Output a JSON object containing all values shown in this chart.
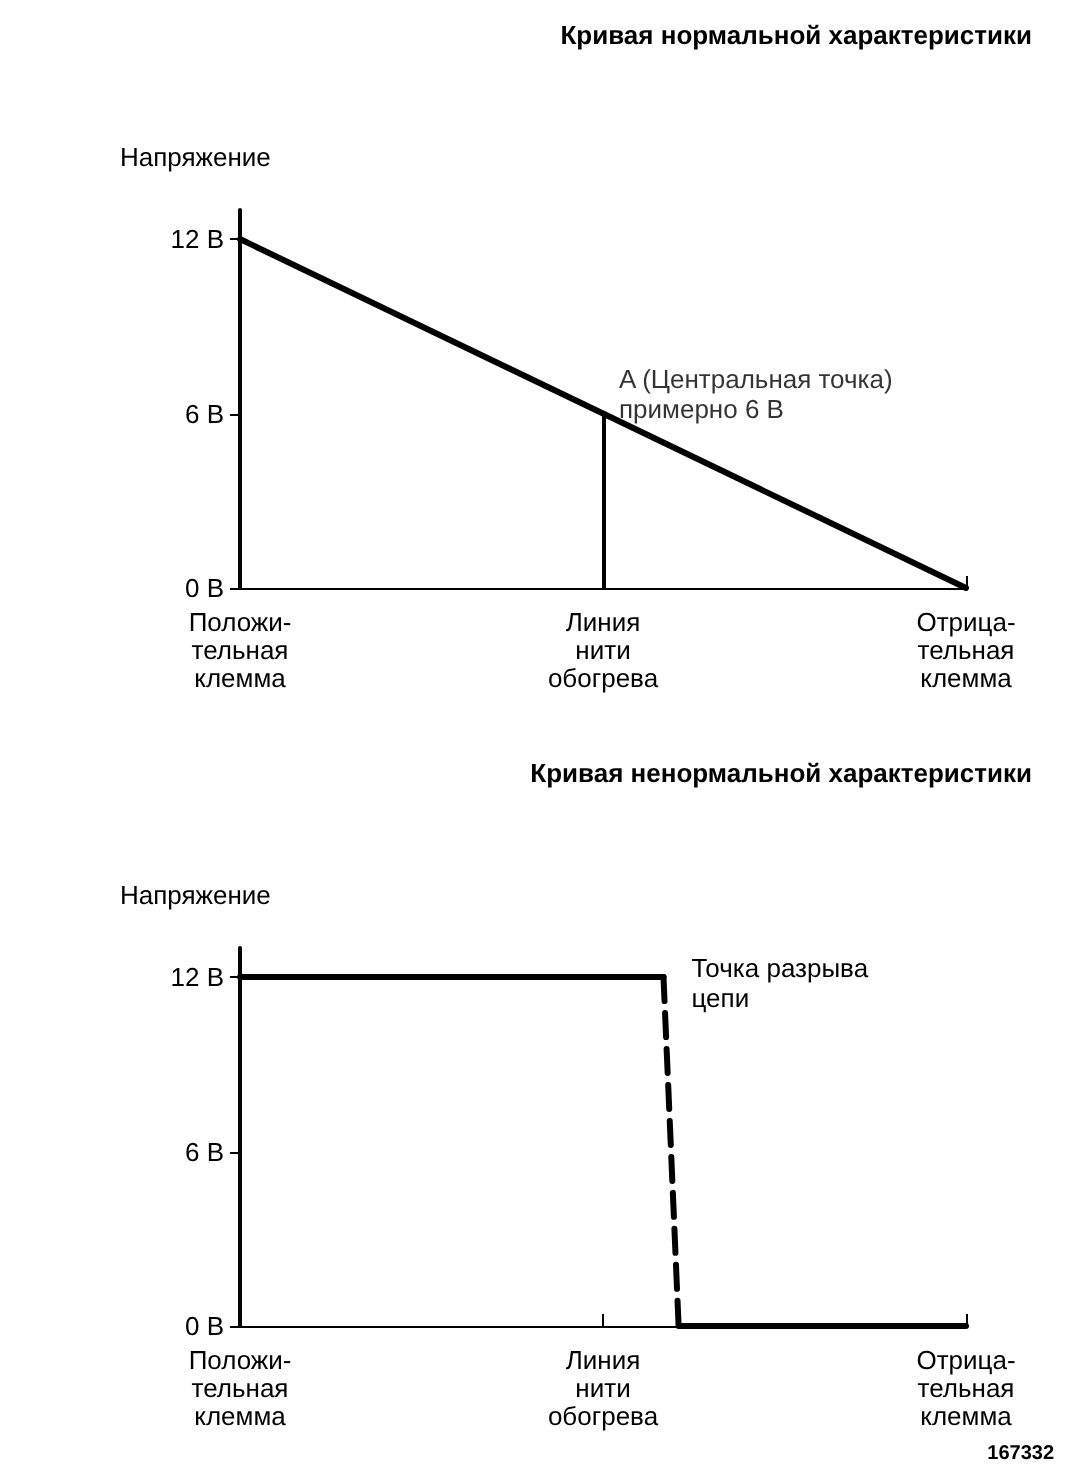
{
  "chart_data": [
    {
      "type": "line",
      "title": "Кривая нормальной характеристики",
      "ylabel": "Напряжение",
      "categories": [
        "Положи-\nтельная\nклемма",
        "Линия\nнити\nобогрева",
        "Отрица-\nтельная\nклемма"
      ],
      "series": [
        {
          "color": "#000000",
          "values": [
            12,
            6,
            0
          ]
        }
      ],
      "ylim": [
        0,
        13
      ],
      "yticks": [
        {
          "value": 0,
          "label": "0 В"
        },
        {
          "value": 6,
          "label": "6 В"
        },
        {
          "value": 12,
          "label": "12 В"
        }
      ],
      "annotations": [
        {
          "text": "A (Центральная точка)\nпримерно 6 В",
          "x": "Линия\nнити\nобогрева",
          "y": 6
        }
      ],
      "marker": "none",
      "line_style": "solid"
    },
    {
      "type": "line",
      "title": "Кривая ненормальной характеристики",
      "ylabel": "Напряжение",
      "categories": [
        "Положи-\nтельная\nклемма",
        null,
        null,
        null,
        null,
        null,
        null,
        null,
        null,
        null,
        null,
        null,
        null,
        null,
        null,
        null,
        null,
        null,
        null,
        null,
        null,
        null,
        null,
        null,
        "Линия\nнити\nобогрева",
        null,
        null,
        null,
        null,
        null,
        null,
        null,
        null,
        null,
        null,
        null,
        null,
        null,
        null,
        null,
        null,
        null,
        null,
        null,
        null,
        null,
        null,
        null,
        "Отрица-\nтельная\nклемма"
      ],
      "series": [
        {
          "color": "#000000",
          "values": [
            12,
            12,
            12,
            12,
            12,
            12,
            12,
            12,
            12,
            12,
            12,
            12,
            12,
            12,
            12,
            12,
            12,
            12,
            12,
            12,
            12,
            12,
            12,
            12,
            12,
            12,
            12,
            12,
            12,
            null,
            null,
            null,
            null,
            null,
            null,
            null,
            null,
            null,
            null,
            null,
            null,
            null,
            null,
            null,
            null,
            null,
            null,
            null,
            null
          ]
        },
        {
          "color": "#000000",
          "values": [
            null,
            null,
            null,
            null,
            null,
            null,
            null,
            null,
            null,
            null,
            null,
            null,
            null,
            null,
            null,
            null,
            null,
            null,
            null,
            null,
            null,
            null,
            null,
            null,
            null,
            null,
            null,
            null,
            null,
            0,
            0,
            0,
            0,
            0,
            0,
            0,
            0,
            0,
            0,
            0,
            0,
            0,
            0,
            0,
            0,
            0,
            0,
            0,
            0
          ]
        },
        {
          "color": "#000000",
          "line_style": "dashed",
          "values": [
            null,
            null,
            null,
            null,
            null,
            null,
            null,
            null,
            null,
            null,
            null,
            null,
            null,
            null,
            null,
            null,
            null,
            null,
            null,
            null,
            null,
            null,
            null,
            null,
            null,
            null,
            null,
            null,
            12,
            0,
            null,
            null,
            null,
            null,
            null,
            null,
            null,
            null,
            null,
            null,
            null,
            null,
            null,
            null,
            null,
            null,
            null,
            null,
            null
          ]
        }
      ],
      "ylim": [
        0,
        13
      ],
      "yticks": [
        {
          "value": 0,
          "label": "0 В"
        },
        {
          "value": 6,
          "label": "6 В"
        },
        {
          "value": 12,
          "label": "12 В"
        }
      ],
      "annotations": [
        "Точка разрыва\nцепи",
        "167332"
      ],
      "marker": "none",
      "line_style": "solid"
    }
  ]
}
